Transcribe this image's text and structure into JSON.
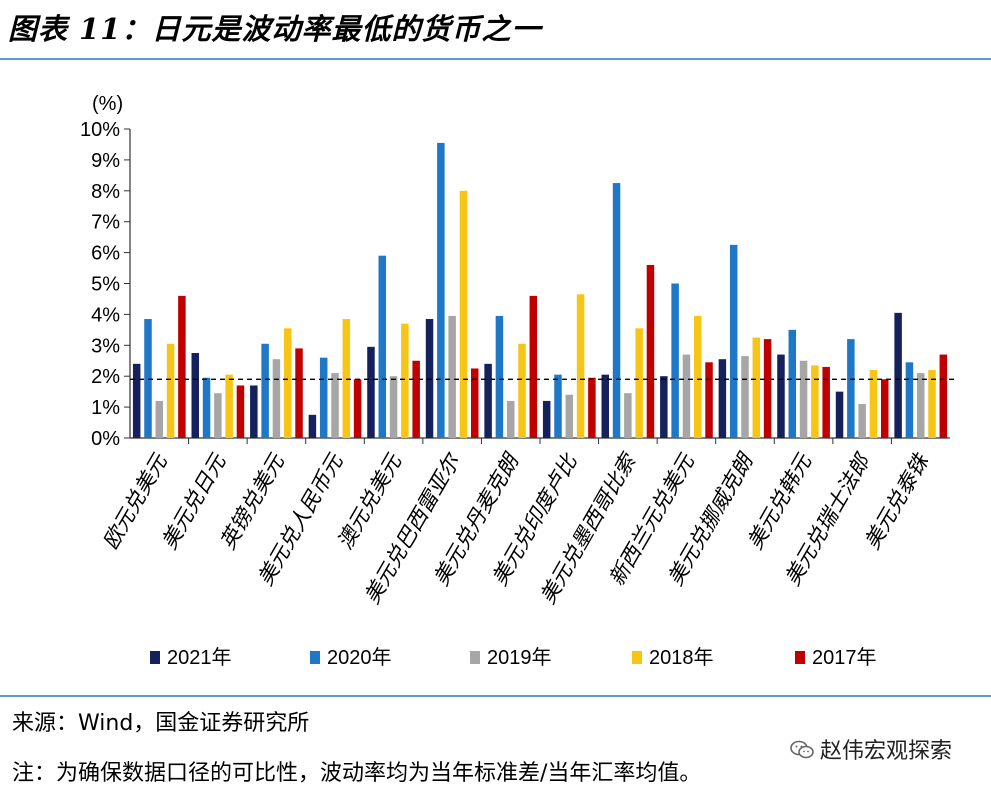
{
  "title": "图表 11：日元是波动率最低的货币之一",
  "source": "来源：Wind，国金证券研究所",
  "note": "注：为确保数据口径的可比性，波动率均为当年标准差/当年汇率均值。",
  "watermark": "赵伟宏观探索",
  "icons": {
    "watermark": "wechat-icon"
  },
  "chart_data": {
    "type": "bar",
    "ylabel": "(%)",
    "ylim": [
      0,
      10
    ],
    "yticks": [
      "0%",
      "1%",
      "2%",
      "3%",
      "4%",
      "5%",
      "6%",
      "7%",
      "8%",
      "9%",
      "10%"
    ],
    "reference_line": {
      "value": 1.9,
      "style": "dashed"
    },
    "legend_position": "bottom",
    "categories": [
      "欧元兑美元",
      "美元兑日元",
      "英镑兑美元",
      "美元兑人民币元",
      "澳元兑美元",
      "美元兑巴西雷亚尔",
      "美元兑丹麦克朗",
      "美元兑印度卢比",
      "美元兑墨西哥比索",
      "新西兰元兑美元",
      "美元兑挪威克朗",
      "美元兑韩元",
      "美元兑瑞士法郎",
      "美元兑泰铢"
    ],
    "series": [
      {
        "name": "2021年",
        "color": "#14215c",
        "values": [
          2.4,
          2.75,
          1.7,
          0.75,
          2.95,
          3.85,
          2.4,
          1.2,
          2.05,
          2.0,
          2.55,
          2.7,
          1.5,
          4.05
        ]
      },
      {
        "name": "2020年",
        "color": "#1f77c8",
        "values": [
          3.85,
          1.95,
          3.05,
          2.6,
          5.9,
          9.55,
          3.95,
          2.05,
          8.25,
          5.0,
          6.25,
          3.5,
          3.2,
          2.45
        ]
      },
      {
        "name": "2019年",
        "color": "#a6a6a6",
        "values": [
          1.2,
          1.45,
          2.55,
          2.1,
          2.0,
          3.95,
          1.2,
          1.4,
          1.45,
          2.7,
          2.65,
          2.5,
          1.1,
          2.1
        ]
      },
      {
        "name": "2018年",
        "color": "#f7c515",
        "values": [
          3.05,
          2.05,
          3.55,
          3.85,
          3.7,
          8.0,
          3.05,
          4.65,
          3.55,
          3.95,
          3.25,
          2.35,
          2.2,
          2.2
        ]
      },
      {
        "name": "2017年",
        "color": "#c00000",
        "values": [
          4.6,
          1.7,
          2.9,
          1.9,
          2.5,
          2.25,
          4.6,
          1.95,
          5.6,
          2.45,
          3.2,
          2.3,
          1.9,
          2.7
        ]
      }
    ]
  }
}
